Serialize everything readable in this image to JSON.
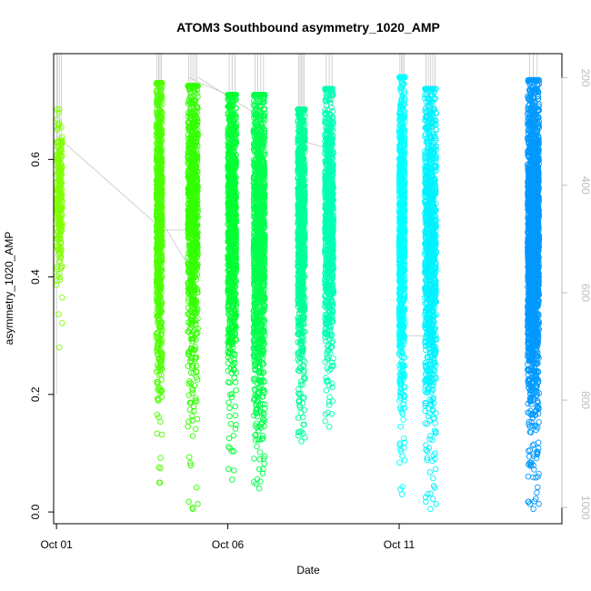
{
  "chart_data": {
    "type": "scatter",
    "title": "ATOM3 Southbound asymmetry_1020_AMP",
    "xlabel": "Date",
    "ylabel": "asymmetry_1020_AMP",
    "x_axis": {
      "type": "date",
      "min": "2016-09-30T22:00",
      "max": "2016-10-15T18:00",
      "ticks": [
        {
          "value": "2016-10-01",
          "label": "Oct 01"
        },
        {
          "value": "2016-10-06",
          "label": "Oct 06"
        },
        {
          "value": "2016-10-11",
          "label": "Oct 11"
        }
      ]
    },
    "y_axis": {
      "min": -0.02,
      "max": 0.78,
      "ticks": [
        {
          "value": 0.0,
          "label": "0.0"
        },
        {
          "value": 0.2,
          "label": "0.2"
        },
        {
          "value": 0.4,
          "label": "0.4"
        },
        {
          "value": 0.6,
          "label": "0.6"
        }
      ]
    },
    "y2_axis": {
      "label": "",
      "color": "#bdbdbd",
      "min": 1030,
      "max": 155,
      "ticks": [
        {
          "value": 200,
          "label": "200"
        },
        {
          "value": 400,
          "label": "400"
        },
        {
          "value": 600,
          "label": "600"
        },
        {
          "value": 800,
          "label": "800"
        },
        {
          "value": 1000,
          "label": "1000"
        }
      ]
    },
    "grid": false,
    "legend": "none",
    "series": [
      {
        "start": "2016-10-01T00:00",
        "end": "2016-10-01T04:00",
        "color": "#80ff00",
        "y_min": 0.28,
        "y_max": 0.685,
        "y_center": 0.54,
        "spread": 0.06,
        "n": 260
      },
      {
        "start": "2016-10-03T22:00",
        "end": "2016-10-04T02:00",
        "color": "#4cff00",
        "y_min": 0.05,
        "y_max": 0.73,
        "y_center": 0.5,
        "spread": 0.14,
        "n": 800
      },
      {
        "start": "2016-10-04T20:00",
        "end": "2016-10-05T03:00",
        "color": "#33ff00",
        "y_min": 0.005,
        "y_max": 0.725,
        "y_center": 0.52,
        "spread": 0.14,
        "n": 900
      },
      {
        "start": "2016-10-06T00:00",
        "end": "2016-10-06T06:00",
        "color": "#00ff33",
        "y_min": 0.055,
        "y_max": 0.71,
        "y_center": 0.5,
        "spread": 0.14,
        "n": 1000
      },
      {
        "start": "2016-10-06T18:00",
        "end": "2016-10-07T02:00",
        "color": "#00ff4c",
        "y_min": 0.04,
        "y_max": 0.71,
        "y_center": 0.47,
        "spread": 0.15,
        "n": 1200
      },
      {
        "start": "2016-10-08T01:00",
        "end": "2016-10-08T06:00",
        "color": "#00ff99",
        "y_min": 0.12,
        "y_max": 0.685,
        "y_center": 0.5,
        "spread": 0.13,
        "n": 1000
      },
      {
        "start": "2016-10-08T20:00",
        "end": "2016-10-09T02:00",
        "color": "#00ffb3",
        "y_min": 0.145,
        "y_max": 0.72,
        "y_center": 0.5,
        "spread": 0.12,
        "n": 900
      },
      {
        "start": "2016-10-11T00:00",
        "end": "2016-10-11T04:00",
        "color": "#00ffff",
        "y_min": 0.03,
        "y_max": 0.74,
        "y_center": 0.48,
        "spread": 0.14,
        "n": 800
      },
      {
        "start": "2016-10-11T18:00",
        "end": "2016-10-12T02:00",
        "color": "#00f2ff",
        "y_min": 0.005,
        "y_max": 0.72,
        "y_center": 0.45,
        "spread": 0.15,
        "n": 1100
      },
      {
        "start": "2016-10-14T18:00",
        "end": "2016-10-15T02:00",
        "color": "#0099ff",
        "y_min": 0.005,
        "y_max": 0.735,
        "y_center": 0.47,
        "spread": 0.14,
        "n": 2000
      }
    ]
  }
}
